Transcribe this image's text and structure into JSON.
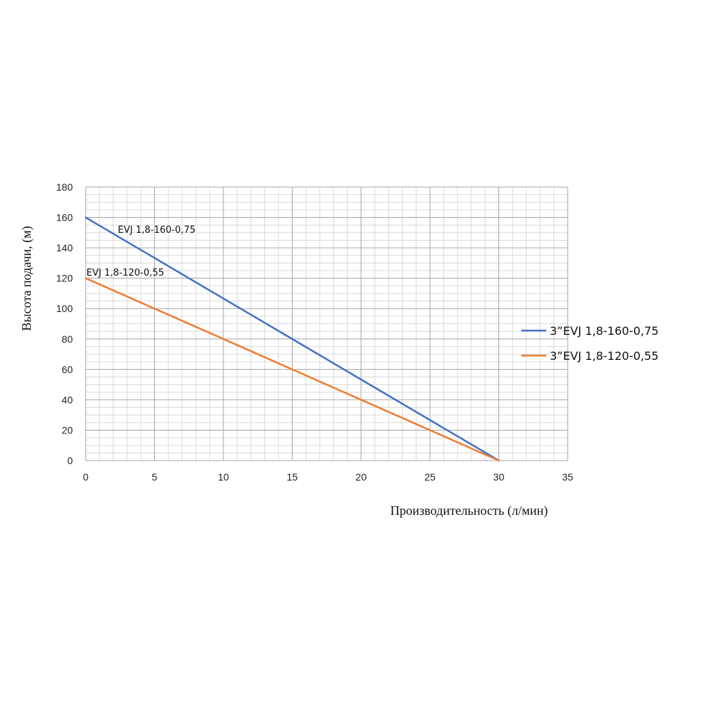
{
  "chart_data": {
    "type": "line",
    "title": "",
    "xlabel": "Производительность (л/мин)",
    "ylabel": "Высота подачи, (м)",
    "xlim": [
      0,
      35
    ],
    "ylim": [
      0,
      180
    ],
    "x_ticks": [
      "0",
      "5",
      "10",
      "15",
      "20",
      "25",
      "30",
      "35"
    ],
    "y_ticks": [
      "0",
      "20",
      "40",
      "60",
      "80",
      "100",
      "120",
      "140",
      "160",
      "180"
    ],
    "grid": true,
    "legend_position": "right",
    "series": [
      {
        "name": "3”EVJ 1,8-160-0,75",
        "inline_label": "EVJ 1,8-160-0,75",
        "color": "#4472C4",
        "x": [
          0,
          30
        ],
        "y": [
          160,
          0
        ]
      },
      {
        "name": "3”EVJ 1,8-120-0,55",
        "inline_label": "EVJ 1,8-120-0,55",
        "color": "#ED7D31",
        "x": [
          0,
          30
        ],
        "y": [
          120,
          0
        ]
      }
    ]
  }
}
